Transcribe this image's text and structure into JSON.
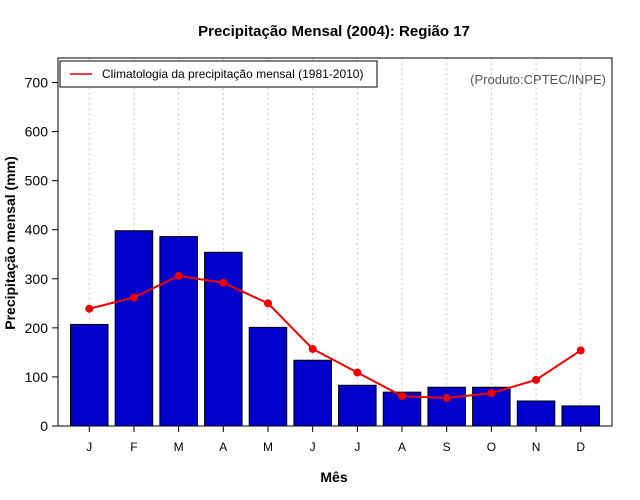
{
  "chart_data": {
    "type": "bar",
    "title": "Precipitação Mensal (2004): Região 17",
    "xlabel": "Mês",
    "ylabel": "Precipitação mensal (mm)",
    "ylim": [
      0,
      750
    ],
    "yticks": [
      0,
      100,
      200,
      300,
      400,
      500,
      600,
      700
    ],
    "categories": [
      "J",
      "F",
      "M",
      "A",
      "M",
      "J",
      "J",
      "A",
      "S",
      "O",
      "N",
      "D"
    ],
    "series": [
      {
        "name": "Precipitação mensal 2004",
        "type": "bar",
        "color": "#0000cc",
        "values": [
          207,
          398,
          386,
          354,
          201,
          134,
          83,
          69,
          79,
          79,
          51,
          41
        ]
      },
      {
        "name": "Climatologia da precipitação mensal (1981-2010)",
        "type": "line",
        "color": "#ee0000",
        "values": [
          239,
          262,
          306,
          292,
          250,
          157,
          109,
          61,
          57,
          67,
          94,
          154
        ]
      }
    ],
    "legend": {
      "position": "top-left",
      "entries": [
        "Climatologia da precipitação mensal (1981-2010)"
      ]
    },
    "annotation": "(Produto:CPTEC/INPE)",
    "grid": "vertical dotted"
  },
  "colors": {
    "bar": "#0000cc",
    "line": "#ee0000",
    "grid": "#cccccc"
  }
}
